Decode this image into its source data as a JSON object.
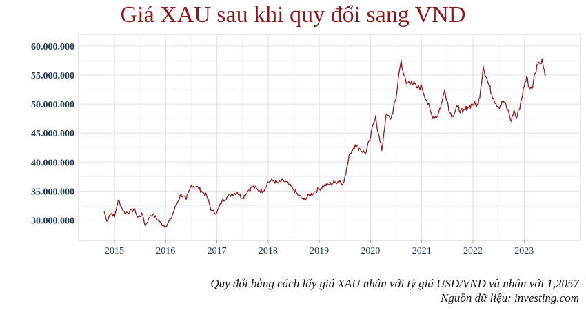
{
  "chart_data": {
    "type": "line",
    "title": "Giá XAU sau khi quy đổi sang VND",
    "xlabel": "",
    "ylabel": "",
    "xlim": [
      2014.3,
      2024.1
    ],
    "ylim": [
      26500000,
      62000000
    ],
    "yticks": [
      30000000,
      35000000,
      40000000,
      45000000,
      50000000,
      55000000,
      60000000
    ],
    "ytick_labels": [
      "30.000.000",
      "35.000.000",
      "40.000.000",
      "45.000.000",
      "50.000.000",
      "55.000.000",
      "60.000.000"
    ],
    "xticks": [
      2015,
      2016,
      2017,
      2018,
      2019,
      2020,
      2021,
      2022,
      2023
    ],
    "xtick_labels": [
      "2015",
      "2016",
      "2017",
      "2018",
      "2019",
      "2020",
      "2021",
      "2022",
      "2023"
    ],
    "grid": true,
    "line_color": "#8b1a1a",
    "series": [
      {
        "x": [
          2014.8,
          2014.85,
          2014.9,
          2014.95,
          2015.0,
          2015.05,
          2015.08,
          2015.15,
          2015.2,
          2015.3,
          2015.4,
          2015.45,
          2015.55,
          2015.6,
          2015.7,
          2015.75,
          2015.9,
          2016.0,
          2016.1,
          2016.2,
          2016.3,
          2016.4,
          2016.5,
          2016.6,
          2016.7,
          2016.8,
          2016.9,
          2017.0,
          2017.1,
          2017.2,
          2017.3,
          2017.4,
          2017.5,
          2017.6,
          2017.7,
          2017.8,
          2017.9,
          2018.0,
          2018.1,
          2018.2,
          2018.3,
          2018.4,
          2018.5,
          2018.6,
          2018.7,
          2018.8,
          2018.9,
          2019.0,
          2019.1,
          2019.2,
          2019.3,
          2019.4,
          2019.45,
          2019.5,
          2019.6,
          2019.7,
          2019.8,
          2019.9,
          2020.0,
          2020.05,
          2020.1,
          2020.15,
          2020.22,
          2020.3,
          2020.4,
          2020.5,
          2020.55,
          2020.6,
          2020.65,
          2020.7,
          2020.8,
          2020.9,
          2021.0,
          2021.1,
          2021.2,
          2021.3,
          2021.4,
          2021.45,
          2021.55,
          2021.6,
          2021.7,
          2021.8,
          2021.9,
          2022.0,
          2022.1,
          2022.15,
          2022.2,
          2022.3,
          2022.4,
          2022.5,
          2022.6,
          2022.7,
          2022.75,
          2022.8,
          2022.85,
          2022.9,
          2023.0,
          2023.05,
          2023.1,
          2023.15,
          2023.2,
          2023.25,
          2023.3,
          2023.35,
          2023.38,
          2023.42
        ],
        "y": [
          31500000,
          29800000,
          30800000,
          31200000,
          30500000,
          32500000,
          33500000,
          32000000,
          31200000,
          31500000,
          31800000,
          30500000,
          31000000,
          29000000,
          30800000,
          31000000,
          29500000,
          28900000,
          30200000,
          32500000,
          34500000,
          33500000,
          36000000,
          35800000,
          35000000,
          34200000,
          31500000,
          31300000,
          33300000,
          34000000,
          34500000,
          34800000,
          33800000,
          35000000,
          35800000,
          35200000,
          35000000,
          36600000,
          36800000,
          36400000,
          36800000,
          36200000,
          35200000,
          34200000,
          33500000,
          34300000,
          34800000,
          35400000,
          36000000,
          36200000,
          36500000,
          36800000,
          36000000,
          37500000,
          41500000,
          43000000,
          42200000,
          41500000,
          44200000,
          46500000,
          48000000,
          45000000,
          42000000,
          48000000,
          47500000,
          51000000,
          55000000,
          57500000,
          55000000,
          53500000,
          54000000,
          52800000,
          53000000,
          50500000,
          48000000,
          47800000,
          50500000,
          52500000,
          48500000,
          48000000,
          49500000,
          48500000,
          49500000,
          50000000,
          49800000,
          52500000,
          56500000,
          53500000,
          51000000,
          49500000,
          50500000,
          48500000,
          47000000,
          49000000,
          47500000,
          49000000,
          53000000,
          54800000,
          52800000,
          52600000,
          55000000,
          56800000,
          57000000,
          57800000,
          56200000,
          55200000
        ]
      }
    ]
  },
  "captions": [
    "Quy đổi bằng cách lấy giá XAU nhân với tỷ giá USD/VND và nhân với 1,2057",
    "Nguồn dữ liệu: investing.com"
  ]
}
